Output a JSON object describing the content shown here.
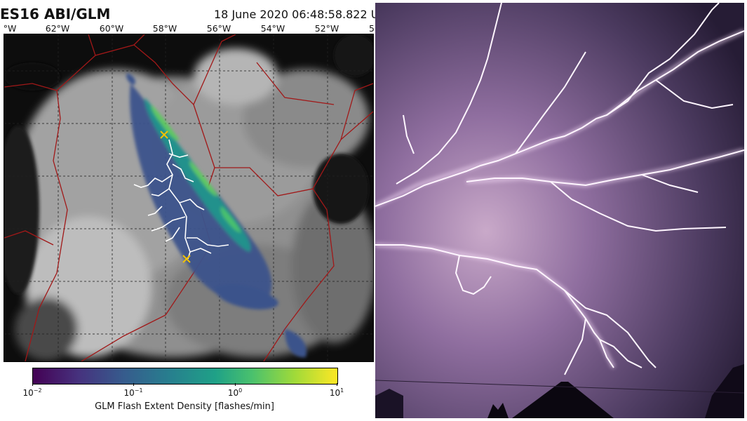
{
  "map": {
    "title": "ES16 ABI/GLM",
    "timestamp": "18 June 2020 06:48:58.822 U",
    "lon_labels": [
      "°W",
      "62°W",
      "60°W",
      "58°W",
      "56°W",
      "54°W",
      "52°W",
      "5"
    ]
  },
  "colorbar": {
    "tick_labels": [
      {
        "base": "10",
        "exp": "−2"
      },
      {
        "base": "10",
        "exp": "−1"
      },
      {
        "base": "10",
        "exp": "0"
      },
      {
        "base": "10",
        "exp": "1"
      }
    ],
    "title": "GLM Flash Extent Density [flashes/min]",
    "colormap": [
      "#440154",
      "#46327e",
      "#365c8d",
      "#277f8e",
      "#1fa187",
      "#4ac16d",
      "#a0da39",
      "#fde725"
    ]
  },
  "photo": {
    "subject": "lightning-storm-photo",
    "sky_color": "#8a6d9c",
    "bolt_color": "#fff4ff"
  }
}
